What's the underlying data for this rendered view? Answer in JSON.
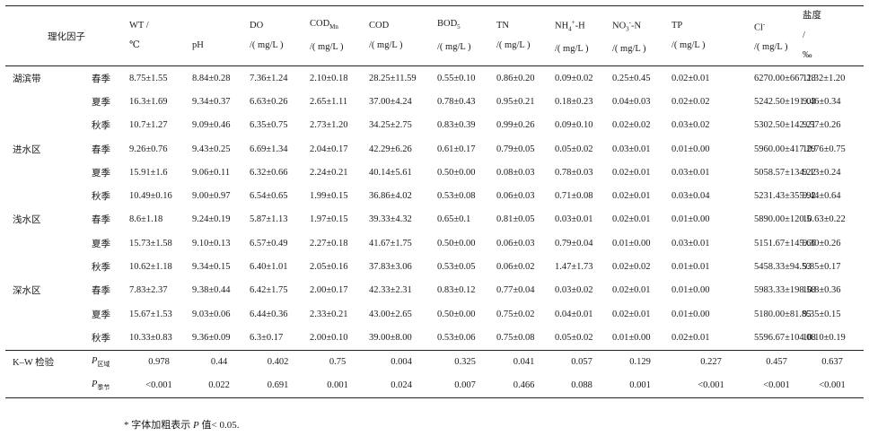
{
  "header": {
    "factor": "理化因子",
    "cols": [
      {
        "line1": "WT /",
        "line2": "℃"
      },
      {
        "line1": "",
        "line2": "pH"
      },
      {
        "line1": "DO",
        "line2": "/( mg/L )"
      },
      {
        "line1": "COD",
        "sub": "Mn",
        "line2": "/( mg/L )"
      },
      {
        "line1": "COD",
        "line2": "/( mg/L )"
      },
      {
        "line1": "BOD",
        "sub": "5",
        "line2": "/( mg/L )"
      },
      {
        "line1": "TN",
        "line2": "/( mg/L )"
      },
      {
        "line1": "NH",
        "sub": "4",
        "sup": "+",
        "tail": "-H",
        "line2": "/( mg/L )"
      },
      {
        "line1": "NO",
        "sub": "3",
        "sup": "-",
        "tail": "-N",
        "line2": "/( mg/L )"
      },
      {
        "line1": "TP",
        "line2": "/( mg/L )"
      },
      {
        "line1": "Cl",
        "sup": "-",
        "line2": "/( mg/L )"
      },
      {
        "line1": "盐度",
        "line2": "/",
        "line3": "‰"
      }
    ]
  },
  "rows": [
    {
      "zone": "湖滨带",
      "season": "春季",
      "values": [
        "8.75±1.55",
        "8.84±0.28",
        "7.36±1.24",
        "2.10±0.18",
        "28.25±11.59",
        "0.55±0.10",
        "0.86±0.20",
        "0.09±0.02",
        "0.25±0.45",
        "0.02±0.01",
        "6270.00±667.28",
        "11.32±1.20"
      ]
    },
    {
      "zone": "",
      "season": "夏季",
      "values": [
        "16.3±1.69",
        "9.34±0.37",
        "6.63±0.26",
        "2.65±1.11",
        "37.00±4.24",
        "0.78±0.43",
        "0.95±0.21",
        "0.18±0.23",
        "0.04±0.03",
        "0.02±0.02",
        "5242.50±191.03",
        "9.46±0.34"
      ]
    },
    {
      "zone": "",
      "season": "秋季",
      "values": [
        "10.7±1.27",
        "9.09±0.46",
        "6.35±0.75",
        "2.73±1.20",
        "34.25±2.75",
        "0.83±0.39",
        "0.99±0.26",
        "0.09±0.10",
        "0.02±0.02",
        "0.03±0.02",
        "5302.50±142.21",
        "9.57±0.26"
      ]
    },
    {
      "zone": "进水区",
      "season": "春季",
      "values": [
        "9.26±0.76",
        "9.43±0.25",
        "6.69±1.34",
        "2.04±0.17",
        "42.29±6.26",
        "0.61±0.17",
        "0.79±0.05",
        "0.05±0.02",
        "0.03±0.01",
        "0.01±0.00",
        "5960.00±417.29",
        "10.76±0.75"
      ]
    },
    {
      "zone": "",
      "season": "夏季",
      "values": [
        "15.91±1.6",
        "9.06±0.11",
        "6.32±0.66",
        "2.24±0.21",
        "40.14±5.61",
        "0.50±0.00",
        "0.08±0.03",
        "0.78±0.03",
        "0.02±0.01",
        "0.03±0.01",
        "5058.57±134.22",
        "9.13±0.24"
      ]
    },
    {
      "zone": "",
      "season": "秋季",
      "values": [
        "10.49±0.16",
        "9.00±0.97",
        "6.54±0.65",
        "1.99±0.15",
        "36.86±4.02",
        "0.53±0.08",
        "0.06±0.03",
        "0.71±0.08",
        "0.02±0.01",
        "0.03±0.04",
        "5231.43±355.92",
        "9.44±0.64"
      ]
    },
    {
      "zone": "浅水区",
      "season": "春季",
      "values": [
        "8.6±1.18",
        "9.24±0.19",
        "5.87±1.13",
        "1.97±0.15",
        "39.33±4.32",
        "0.65±0.1",
        "0.81±0.05",
        "0.03±0.01",
        "0.02±0.01",
        "0.01±0.00",
        "5890.00±120.5",
        "10.63±0.22"
      ]
    },
    {
      "zone": "",
      "season": "夏季",
      "values": [
        "15.73±1.58",
        "9.10±0.13",
        "6.57±0.49",
        "2.27±0.18",
        "41.67±1.75",
        "0.50±0.00",
        "0.06±0.03",
        "0.79±0.04",
        "0.01±0.00",
        "0.03±0.01",
        "5151.67±145.66",
        "9.30±0.26"
      ]
    },
    {
      "zone": "",
      "season": "秋季",
      "values": [
        "10.62±1.18",
        "9.34±0.15",
        "6.40±1.01",
        "2.05±0.16",
        "37.83±3.06",
        "0.53±0.05",
        "0.06±0.02",
        "1.47±1.73",
        "0.02±0.02",
        "0.01±0.01",
        "5458.33±94.53",
        "9.85±0.17"
      ]
    },
    {
      "zone": "深水区",
      "season": "春季",
      "values": [
        "7.83±2.37",
        "9.38±0.44",
        "6.42±1.75",
        "2.00±0.17",
        "42.33±2.31",
        "0.83±0.12",
        "0.77±0.04",
        "0.03±0.02",
        "0.02±0.01",
        "0.01±0.00",
        "5983.33±198.58",
        "10.8±0.36"
      ]
    },
    {
      "zone": "",
      "season": "夏季",
      "values": [
        "15.67±1.53",
        "9.03±0.06",
        "6.44±0.36",
        "2.33±0.21",
        "43.00±2.65",
        "0.50±0.00",
        "0.75±0.02",
        "0.04±0.01",
        "0.02±0.01",
        "0.01±0.00",
        "5180.00±81.85",
        "9.35±0.15"
      ]
    },
    {
      "zone": "",
      "season": "秋季",
      "values": [
        "10.33±0.83",
        "9.36±0.09",
        "6.3±0.17",
        "2.00±0.10",
        "39.00±8.00",
        "0.53±0.06",
        "0.75±0.08",
        "0.05±0.02",
        "0.01±0.00",
        "0.02±0.01",
        "5596.67±104.08",
        "10.10±0.19"
      ]
    }
  ],
  "kw": {
    "label": "K–W 检验",
    "rows": [
      {
        "p": "P",
        "sub": "区域",
        "values": [
          "0.978",
          "0.44",
          "0.402",
          "0.75",
          "0.004",
          "0.325",
          "0.041",
          "0.057",
          "0.129",
          "0.227",
          "0.457",
          "0.637"
        ],
        "bold": [
          false,
          false,
          false,
          false,
          true,
          false,
          true,
          false,
          false,
          false,
          false,
          false
        ]
      },
      {
        "p": "P",
        "sub": "季节",
        "values": [
          "<0.001",
          "0.022",
          "0.691",
          "0.001",
          "0.024",
          "0.007",
          "0.466",
          "0.088",
          "0.001",
          "<0.001",
          "<0.001",
          "<0.001"
        ],
        "bold": [
          true,
          true,
          false,
          true,
          true,
          true,
          false,
          false,
          true,
          true,
          true,
          true
        ]
      }
    ]
  },
  "footnote": {
    "prefix": "* 字体加粗表示 ",
    "p": "P",
    "suffix": " 值< 0.05."
  }
}
